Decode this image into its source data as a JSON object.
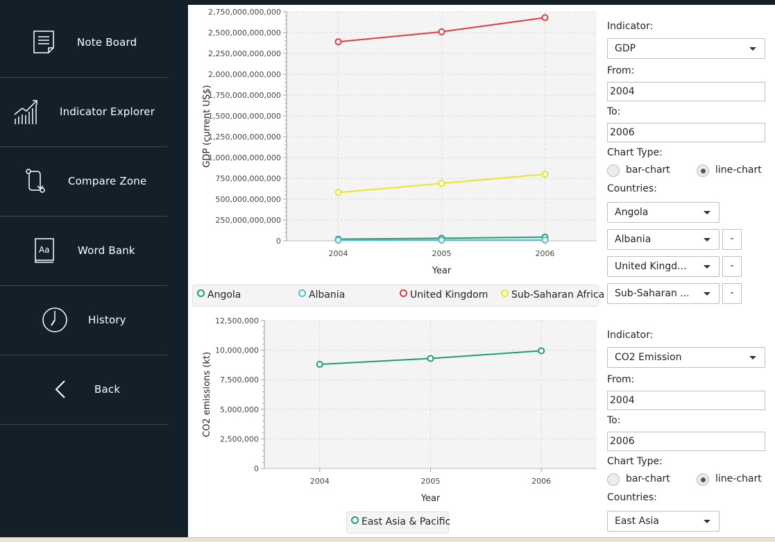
{
  "sidebar": {
    "items": [
      {
        "label": "Note Board",
        "icon": "note-icon"
      },
      {
        "label": "Indicator Explorer",
        "icon": "chart-growth-icon"
      },
      {
        "label": "Compare Zone",
        "icon": "compare-icon"
      },
      {
        "label": "Word Bank",
        "icon": "dictionary-icon"
      },
      {
        "label": "History",
        "icon": "clock-icon"
      },
      {
        "label": "Back",
        "icon": "chevron-left-icon"
      }
    ]
  },
  "panels": [
    {
      "indicator_label": "Indicator:",
      "indicator": "GDP",
      "from_label": "From:",
      "from": "2004",
      "to_label": "To:",
      "to": "2006",
      "chart_type_label": "Chart Type:",
      "bar_label": "bar-chart",
      "line_label": "line-chart",
      "countries_label": "Countries:",
      "countries": [
        "Angola",
        "Albania",
        "United Kingd...",
        "Sub-Saharan ..."
      ],
      "remove_label": "-"
    },
    {
      "indicator_label": "Indicator:",
      "indicator": "CO2 Emission",
      "from_label": "From:",
      "from": "2004",
      "to_label": "To:",
      "to": "2006",
      "chart_type_label": "Chart Type:",
      "bar_label": "bar-chart",
      "line_label": "line-chart",
      "countries_label": "Countries:",
      "countries": [
        "East Asia"
      ]
    }
  ],
  "chart_data": [
    {
      "type": "line",
      "xlabel": "Year",
      "ylabel": "GDP (current US$)",
      "x": [
        "2004",
        "2005",
        "2006"
      ],
      "ylim": [
        0,
        2750000000000
      ],
      "yticks": [
        "0",
        "250,000,000,000",
        "500,000,000,000",
        "750,000,000,000",
        "1,000,000,000,000",
        "1,250,000,000,000",
        "1,500,000,000,000",
        "1,750,000,000,000",
        "2,000,000,000,000",
        "2,250,000,000,000",
        "2,500,000,000,000",
        "2,750,000,000,000"
      ],
      "grid": true,
      "legend": "bottom",
      "series": [
        {
          "name": "Angola",
          "color": "#1a9e78",
          "values": [
            20000000000,
            30000000000,
            45000000000
          ]
        },
        {
          "name": "Albania",
          "color": "#5cb8d0",
          "values": [
            8000000000,
            9000000000,
            10000000000
          ]
        },
        {
          "name": "United Kingdom",
          "color": "#e0393e",
          "values": [
            2390000000000,
            2510000000000,
            2680000000000
          ]
        },
        {
          "name": "Sub-Saharan Africa",
          "color": "#e6e620",
          "values": [
            580000000000,
            690000000000,
            800000000000
          ]
        }
      ]
    },
    {
      "type": "line",
      "xlabel": "Year",
      "ylabel": "CO2 emissions (kt)",
      "x": [
        "2004",
        "2005",
        "2006"
      ],
      "ylim": [
        0,
        12500000
      ],
      "yticks": [
        "0",
        "2,500,000",
        "5,000,000",
        "7,500,000",
        "10,000,000",
        "12,500,000"
      ],
      "grid": true,
      "legend": "bottom",
      "series": [
        {
          "name": "East Asia & Pacific",
          "color": "#1a9e78",
          "values": [
            8800000,
            9300000,
            9950000
          ]
        }
      ]
    }
  ]
}
